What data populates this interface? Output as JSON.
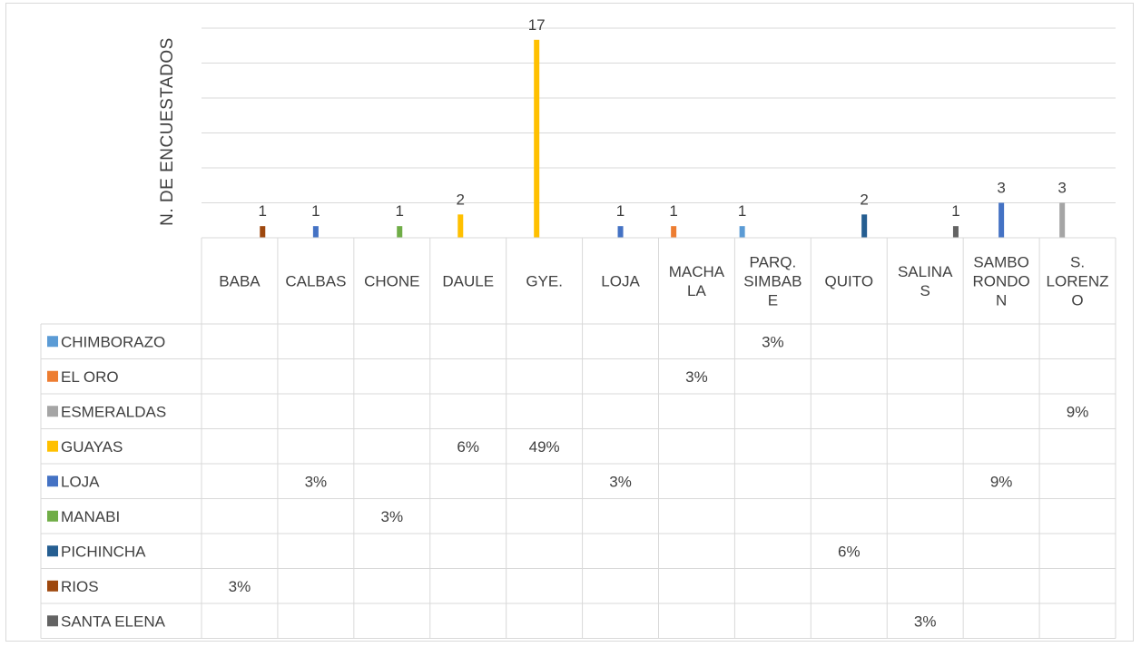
{
  "chart_data": {
    "type": "bar",
    "ylabel": "N. DE ENCUESTADOS",
    "xlabel": "",
    "ylim": [
      0,
      18
    ],
    "grid": true,
    "categories": [
      [
        "BABA"
      ],
      [
        "CALBAS"
      ],
      [
        "CHONE"
      ],
      [
        "DAULE"
      ],
      [
        "GYE."
      ],
      [
        "LOJA"
      ],
      [
        "MACHA",
        "LA"
      ],
      [
        "PARQ.",
        "SIMBAB",
        "E"
      ],
      [
        "QUITO"
      ],
      [
        "SALINA",
        "S"
      ],
      [
        "SAMBO",
        "RONDO",
        "N"
      ],
      [
        "S.",
        "LORENZ",
        "O"
      ]
    ],
    "series": [
      {
        "name": "CHIMBORAZO",
        "color": "#5b9bd5",
        "values": [
          null,
          null,
          null,
          null,
          null,
          null,
          null,
          1,
          null,
          null,
          null,
          null
        ],
        "labels": [
          "",
          "",
          "",
          "",
          "",
          "",
          "",
          "3%",
          "",
          "",
          "",
          ""
        ]
      },
      {
        "name": "EL ORO",
        "color": "#ed7d31",
        "values": [
          null,
          null,
          null,
          null,
          null,
          null,
          1,
          null,
          null,
          null,
          null,
          null
        ],
        "labels": [
          "",
          "",
          "",
          "",
          "",
          "",
          "3%",
          "",
          "",
          "",
          "",
          ""
        ]
      },
      {
        "name": "ESMERALDAS",
        "color": "#a5a5a5",
        "values": [
          null,
          null,
          null,
          null,
          null,
          null,
          null,
          null,
          null,
          null,
          null,
          3
        ],
        "labels": [
          "",
          "",
          "",
          "",
          "",
          "",
          "",
          "",
          "",
          "",
          "",
          "9%"
        ]
      },
      {
        "name": "GUAYAS",
        "color": "#ffc000",
        "values": [
          null,
          null,
          null,
          2,
          17,
          null,
          null,
          null,
          null,
          null,
          null,
          null
        ],
        "labels": [
          "",
          "",
          "",
          "6%",
          "49%",
          "",
          "",
          "",
          "",
          "",
          "",
          ""
        ]
      },
      {
        "name": "LOJA",
        "color": "#4472c4",
        "values": [
          null,
          1,
          null,
          null,
          null,
          1,
          null,
          null,
          null,
          null,
          3,
          null
        ],
        "labels": [
          "",
          "3%",
          "",
          "",
          "",
          "3%",
          "",
          "",
          "",
          "",
          "9%",
          ""
        ]
      },
      {
        "name": "MANABI",
        "color": "#70ad47",
        "values": [
          null,
          null,
          1,
          null,
          null,
          null,
          null,
          null,
          null,
          null,
          null,
          null
        ],
        "labels": [
          "",
          "",
          "3%",
          "",
          "",
          "",
          "",
          "",
          "",
          "",
          "",
          ""
        ]
      },
      {
        "name": "PICHINCHA",
        "color": "#255e91",
        "values": [
          null,
          null,
          null,
          null,
          null,
          null,
          null,
          null,
          2,
          null,
          null,
          null
        ],
        "labels": [
          "",
          "",
          "",
          "",
          "",
          "",
          "",
          "",
          "6%",
          "",
          "",
          ""
        ]
      },
      {
        "name": "RIOS",
        "color": "#9e480e",
        "values": [
          1,
          null,
          null,
          null,
          null,
          null,
          null,
          null,
          null,
          null,
          null,
          null
        ],
        "labels": [
          "3%",
          "",
          "",
          "",
          "",
          "",
          "",
          "",
          "",
          "",
          "",
          ""
        ]
      },
      {
        "name": "SANTA ELENA",
        "color": "#636363",
        "values": [
          null,
          null,
          null,
          null,
          null,
          null,
          null,
          null,
          null,
          1,
          null,
          null
        ],
        "labels": [
          "",
          "",
          "",
          "",
          "",
          "",
          "",
          "",
          "",
          "3%",
          "",
          ""
        ]
      }
    ]
  }
}
